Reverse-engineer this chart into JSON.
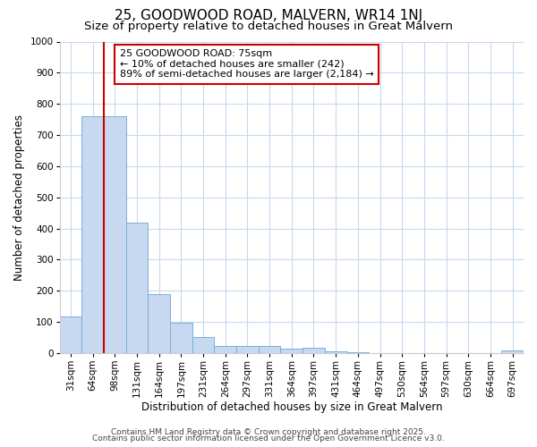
{
  "title": "25, GOODWOOD ROAD, MALVERN, WR14 1NJ",
  "subtitle": "Size of property relative to detached houses in Great Malvern",
  "xlabel": "Distribution of detached houses by size in Great Malvern",
  "ylabel": "Number of detached properties",
  "categories": [
    "31sqm",
    "64sqm",
    "98sqm",
    "131sqm",
    "164sqm",
    "197sqm",
    "231sqm",
    "264sqm",
    "297sqm",
    "331sqm",
    "364sqm",
    "397sqm",
    "431sqm",
    "464sqm",
    "497sqm",
    "530sqm",
    "564sqm",
    "597sqm",
    "630sqm",
    "664sqm",
    "697sqm"
  ],
  "values": [
    118,
    760,
    760,
    420,
    190,
    97,
    50,
    22,
    24,
    22,
    15,
    18,
    4,
    2,
    1,
    1,
    1,
    0,
    0,
    0,
    8
  ],
  "bar_color": "#c6d9f0",
  "bar_edge_color": "#7aaedc",
  "vline_color": "#cc0000",
  "vline_x_idx": 1,
  "ylim": [
    0,
    1000
  ],
  "yticks": [
    0,
    100,
    200,
    300,
    400,
    500,
    600,
    700,
    800,
    900,
    1000
  ],
  "annotation_line1": "25 GOODWOOD ROAD: 75sqm",
  "annotation_line2": "← 10% of detached houses are smaller (242)",
  "annotation_line3": "89% of semi-detached houses are larger (2,184) →",
  "annotation_box_color": "#ffffff",
  "annotation_box_edge_color": "#cc0000",
  "background_color": "#ffffff",
  "plot_bg_color": "#ffffff",
  "grid_color": "#c8d8ee",
  "footer_line1": "Contains HM Land Registry data © Crown copyright and database right 2025.",
  "footer_line2": "Contains public sector information licensed under the Open Government Licence v3.0.",
  "title_fontsize": 11,
  "subtitle_fontsize": 9.5,
  "xlabel_fontsize": 8.5,
  "ylabel_fontsize": 8.5,
  "tick_fontsize": 7.5,
  "annotation_fontsize": 8,
  "footer_fontsize": 6.5
}
